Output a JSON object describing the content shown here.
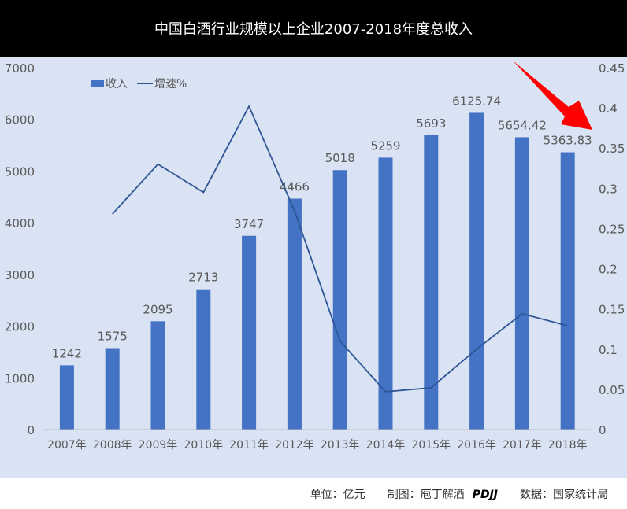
{
  "header": {
    "title": "中国白酒行业规模以上企业2007-2018年度总收入"
  },
  "chart_data": {
    "type": "bar+line",
    "title": "中国白酒行业规模以上企业2007-2018年度总收入",
    "categories": [
      "2007年",
      "2008年",
      "2009年",
      "2010年",
      "2011年",
      "2012年",
      "2013年",
      "2014年",
      "2015年",
      "2016年",
      "2017年",
      "2018年"
    ],
    "series": [
      {
        "name": "收入",
        "type": "bar",
        "axis": "left",
        "color": "#4472c4",
        "values": [
          1242,
          1575,
          2095,
          2713,
          3747,
          4466,
          5018,
          5259,
          5693,
          6125.74,
          5654.42,
          5363.83
        ],
        "labels": [
          "1242",
          "1575",
          "2095",
          "2713",
          "3747",
          "4466",
          "5018",
          "5259",
          "5693",
          "6125.74",
          "5654.42",
          "5363.83"
        ]
      },
      {
        "name": "增速%",
        "type": "line",
        "axis": "right",
        "color": "#2f5597",
        "values": [
          null,
          0.268,
          0.33,
          0.295,
          0.402,
          0.272,
          0.11,
          0.047,
          0.052,
          0.1,
          0.144,
          0.129
        ]
      }
    ],
    "yleft": {
      "ylim": [
        0,
        7000
      ],
      "ticks": [
        "0",
        "1000",
        "2000",
        "3000",
        "4000",
        "5000",
        "6000",
        "7000"
      ]
    },
    "yright": {
      "ylim": [
        0,
        0.45
      ],
      "ticks": [
        "0",
        "0.05",
        "0.1",
        "0.15",
        "0.2",
        "0.25",
        "0.3",
        "0.35",
        "0.4",
        "0.45"
      ]
    },
    "legend": "top-left",
    "annotation": "red arrow pointing to right axis"
  },
  "footer": {
    "unit": "单位：亿元",
    "maker": "制图：庖丁解酒",
    "logo": "PDJJ",
    "source": "数据：国家统计局"
  }
}
